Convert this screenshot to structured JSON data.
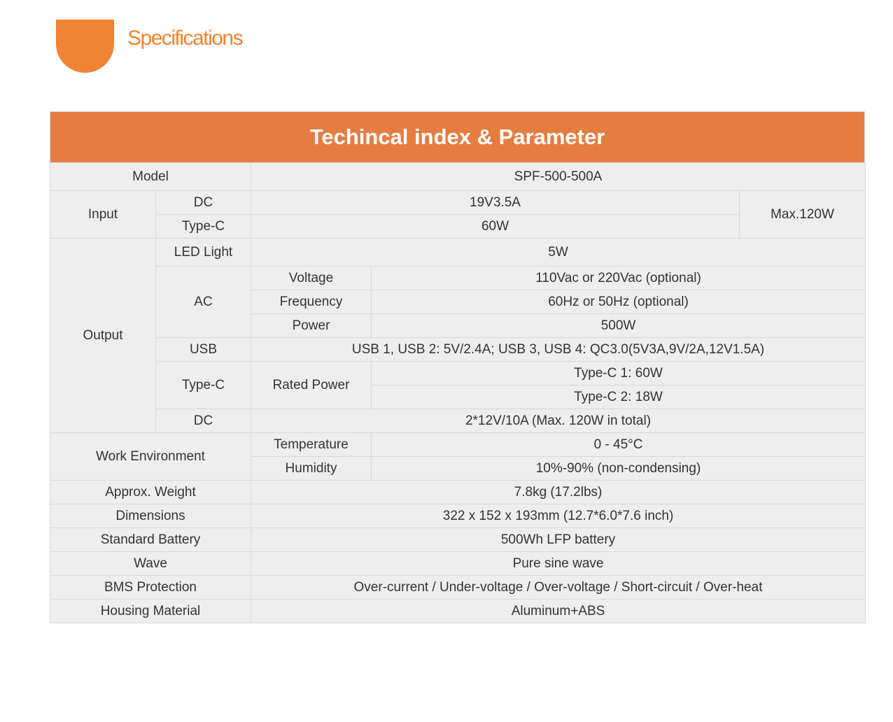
{
  "header": {
    "title": "Specifications"
  },
  "table": {
    "title": "Techincal index & Parameter",
    "model": {
      "label": "Model",
      "value": "SPF-500-500A"
    },
    "input": {
      "label": "Input",
      "dc_label": "DC",
      "dc_value": "19V3.5A",
      "typec_label": "Type-C",
      "typec_value": "60W",
      "max": "Max.120W"
    },
    "output": {
      "label": "Output",
      "led_label": "LED Light",
      "led_value": "5W",
      "ac_label": "AC",
      "voltage_label": "Voltage",
      "voltage_value": "110Vac or 220Vac (optional)",
      "frequency_label": "Frequency",
      "frequency_value": "60Hz or 50Hz (optional)",
      "power_label": "Power",
      "power_value": "500W",
      "usb_label": "USB",
      "usb_value": "USB 1, USB 2: 5V/2.4A; USB 3, USB 4: QC3.0(5V3A,9V/2A,12V1.5A)",
      "typec_label": "Type-C",
      "rated_label": "Rated Power",
      "typec1_value": "Type-C 1: 60W",
      "typec2_value": "Type-C 2: 18W",
      "dc_label": "DC",
      "dc_value": "2*12V/10A (Max. 120W in total)"
    },
    "environment": {
      "label": "Work Environment",
      "temp_label": "Temperature",
      "temp_value": "0 - 45°C",
      "humidity_label": "Humidity",
      "humidity_value": "10%-90% (non-condensing)"
    },
    "weight": {
      "label": "Approx. Weight",
      "value": "7.8kg (17.2lbs)"
    },
    "dimensions": {
      "label": "Dimensions",
      "value": "322 x 152 x 193mm (12.7*6.0*7.6 inch)"
    },
    "battery": {
      "label": "Standard Battery",
      "value": "500Wh LFP battery"
    },
    "wave": {
      "label": "Wave",
      "value": "Pure sine wave"
    },
    "bms": {
      "label": "BMS Protection",
      "value": "Over-current / Under-voltage / Over-voltage / Short-circuit / Over-heat"
    },
    "housing": {
      "label": "Housing Material",
      "value": "Aluminum+ABS"
    }
  }
}
